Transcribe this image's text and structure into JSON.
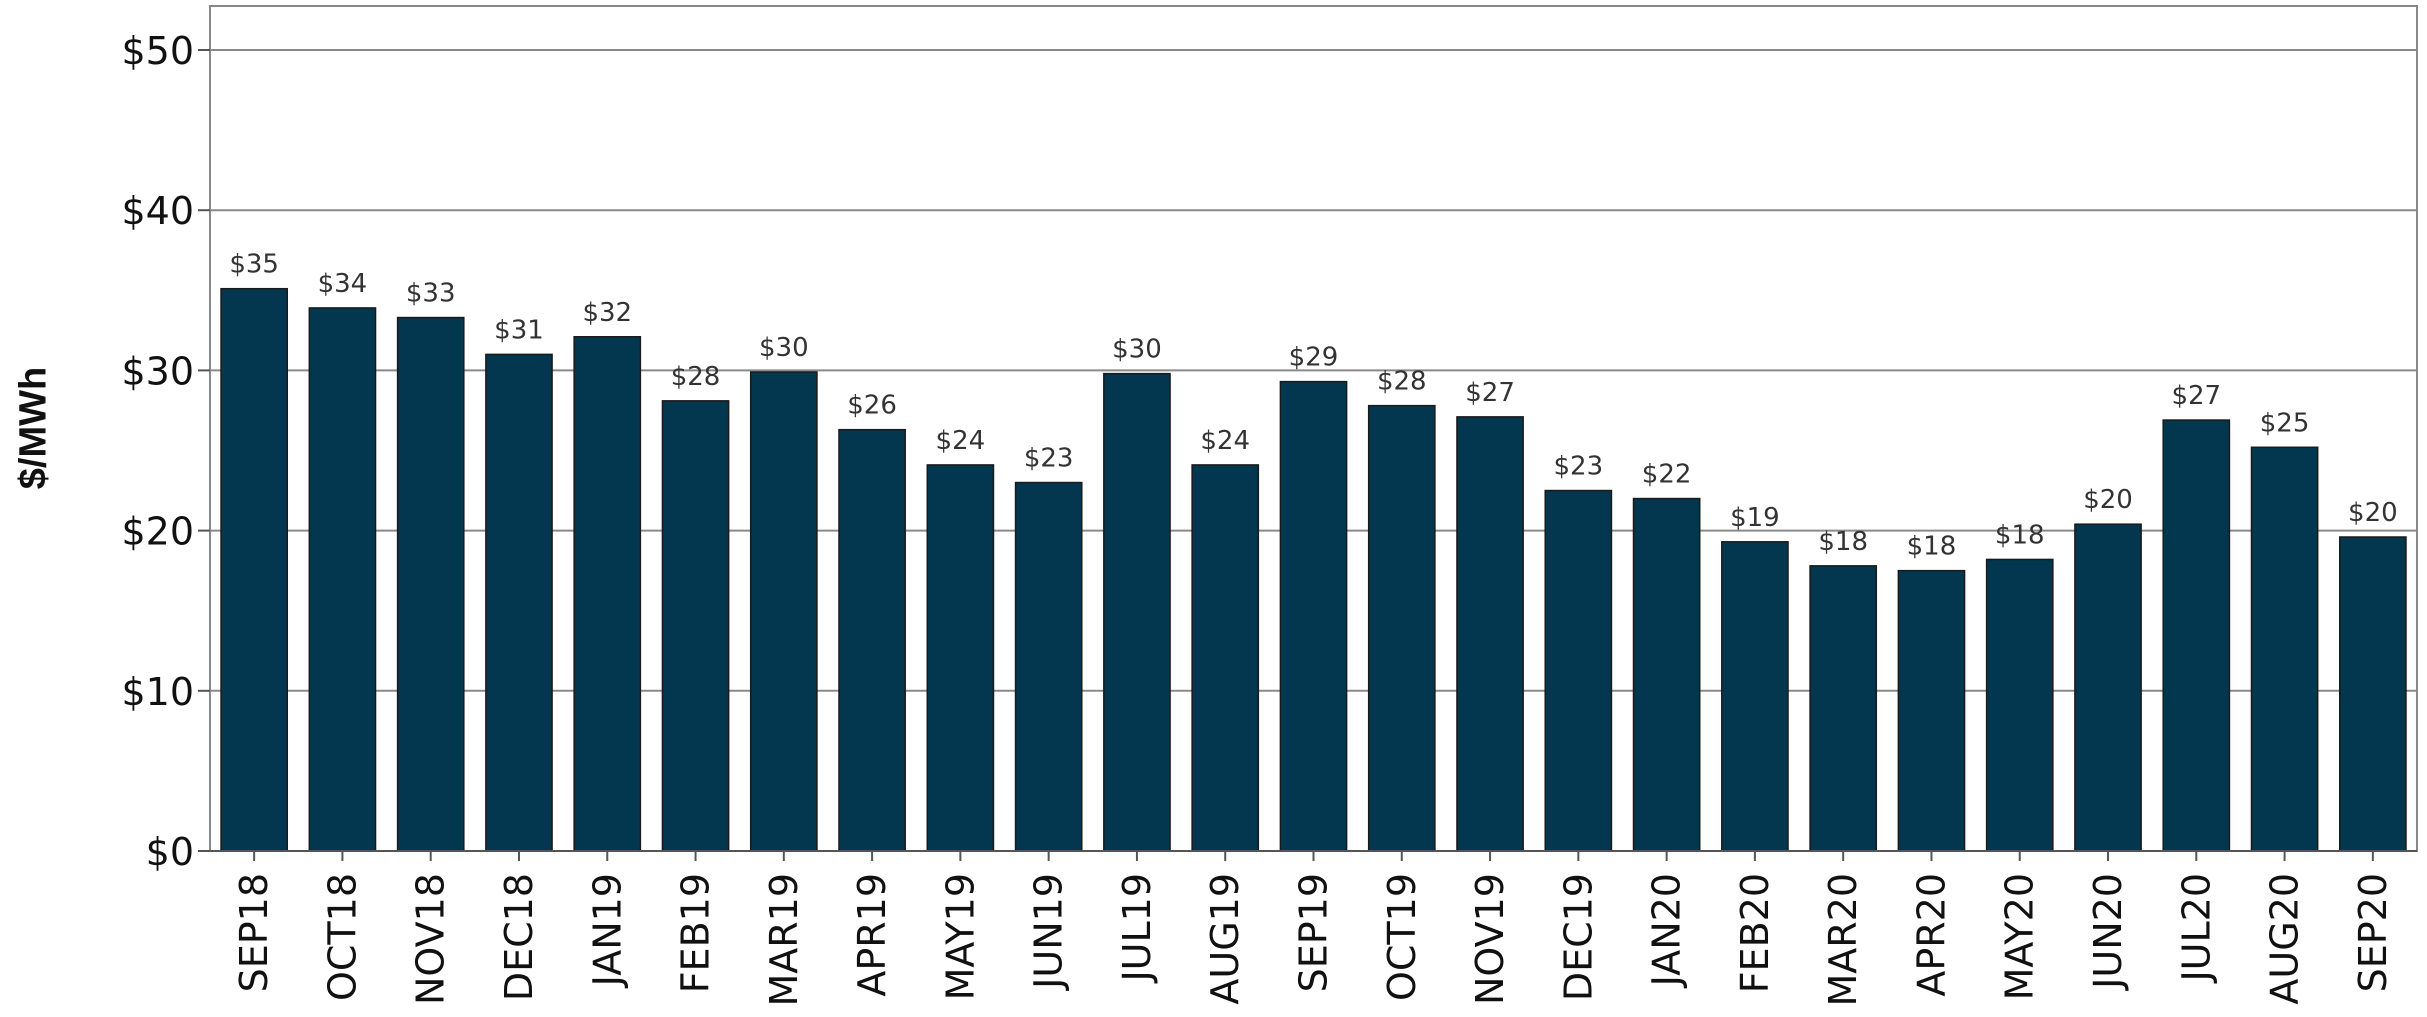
{
  "chart_data": {
    "type": "bar",
    "title": "",
    "xlabel": "",
    "ylabel": "$/MWh",
    "ylim": [
      0,
      52
    ],
    "yticks": [
      0,
      10,
      20,
      30,
      40,
      50
    ],
    "ytick_labels": [
      "$0",
      "$10",
      "$20",
      "$30",
      "$40",
      "$50"
    ],
    "grid": true,
    "bar_color": "#03374f",
    "categories": [
      "SEP18",
      "OCT18",
      "NOV18",
      "DEC18",
      "JAN19",
      "FEB19",
      "MAR19",
      "APR19",
      "MAY19",
      "JUN19",
      "JUL19",
      "AUG19",
      "SEP19",
      "OCT19",
      "NOV19",
      "DEC19",
      "JAN20",
      "FEB20",
      "MAR20",
      "APR20",
      "MAY20",
      "JUN20",
      "JUL20",
      "AUG20",
      "SEP20"
    ],
    "values": [
      35.1,
      33.9,
      33.3,
      31.0,
      32.1,
      28.1,
      29.9,
      26.3,
      24.1,
      23.0,
      29.8,
      24.1,
      29.3,
      27.8,
      27.1,
      22.5,
      22.0,
      19.3,
      17.8,
      17.5,
      18.2,
      20.4,
      26.9,
      25.2,
      19.6
    ],
    "data_labels": [
      "$35",
      "$34",
      "$33",
      "$31",
      "$32",
      "$28",
      "$30",
      "$26",
      "$24",
      "$23",
      "$30",
      "$24",
      "$29",
      "$28",
      "$27",
      "$23",
      "$22",
      "$19",
      "$18",
      "$18",
      "$18",
      "$20",
      "$27",
      "$25",
      "$20"
    ]
  }
}
